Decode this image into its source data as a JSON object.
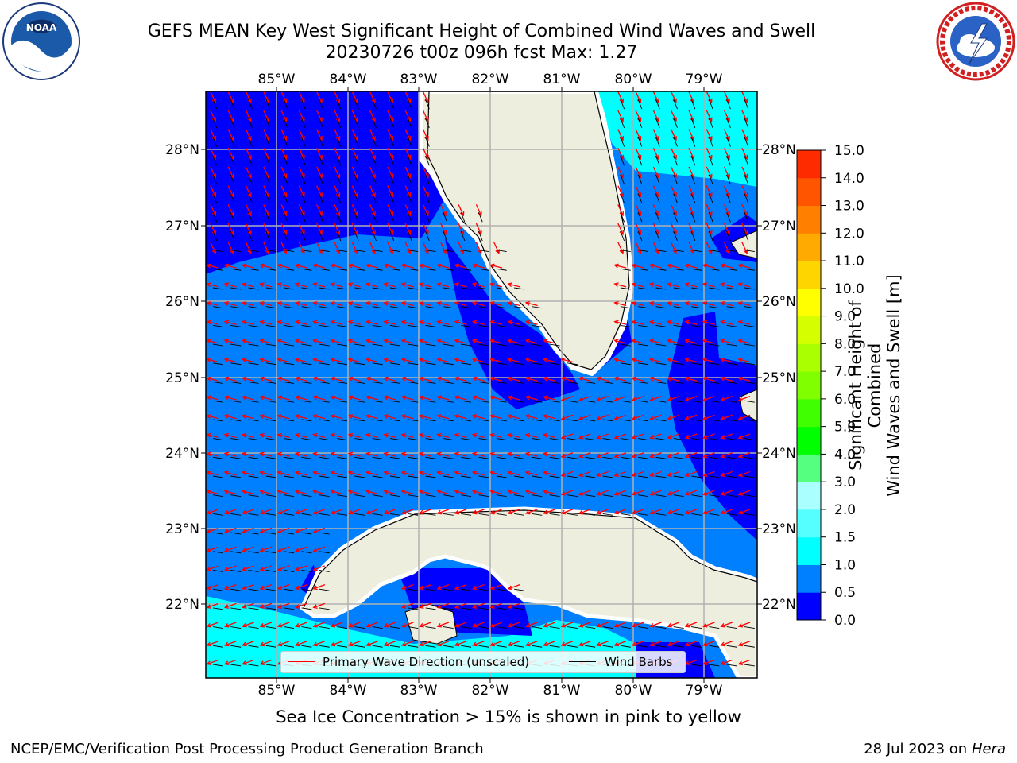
{
  "title_line1": "GEFS MEAN Key West Significant Height of Combined Wind Waves and Swell",
  "title_line2": "20230726 t00z 096h fcst   Max: 1.27",
  "logos": {
    "left": "noaa-logo",
    "left_text": "NOAA",
    "right": "nws-logo"
  },
  "map": {
    "lon_labels": [
      "85°W",
      "84°W",
      "83°W",
      "82°W",
      "81°W",
      "80°W",
      "79°W"
    ],
    "lat_labels": [
      "28°N",
      "27°N",
      "26°N",
      "25°N",
      "24°N",
      "23°N",
      "22°N"
    ],
    "colors": {
      "ocean_dark": "#0000ff",
      "ocean_mid": "#0080ff",
      "ocean_light": "#00ffff",
      "land": "#eeeede",
      "grid": "#b0b0b0",
      "wave_arrow": "#ff0000",
      "wind_barb": "#000000"
    }
  },
  "legend": {
    "wave_label": "Primary Wave Direction (unscaled)",
    "barb_label": "Wind Barbs"
  },
  "colorbar": {
    "label": "Significant Height of Combined\nWind Waves and Swell [m]",
    "ticks": [
      "15.0",
      "14.0",
      "13.0",
      "12.0",
      "11.0",
      "10.0",
      "9.0",
      "8.0",
      "7.0",
      "6.0",
      "5.0",
      "4.0",
      "3.0",
      "2.0",
      "1.5",
      "1.0",
      "0.5",
      "0.0"
    ],
    "bands_bottom_to_top": [
      "#0000ff",
      "#0080ff",
      "#00ffff",
      "#55ffff",
      "#aaffff",
      "#55ff80",
      "#00ff00",
      "#40ff00",
      "#80ff00",
      "#aaff00",
      "#d5ff00",
      "#ffff00",
      "#ffd500",
      "#ffaa00",
      "#ff8000",
      "#ff5500",
      "#ff2b00"
    ]
  },
  "ice_note": "Sea Ice Concentration > 15% is shown in pink to yellow",
  "footer_left": "NCEP/EMC/Verification Post Processing Product Generation Branch",
  "footer_right_date": "28 Jul 2023 on ",
  "footer_right_host": "Hera"
}
